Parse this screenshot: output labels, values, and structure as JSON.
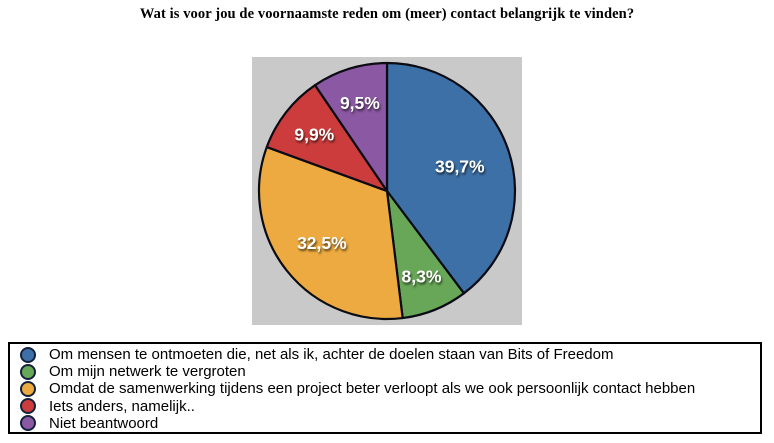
{
  "chart_data": {
    "type": "pie",
    "title": "Wat is voor jou de voornaamste reden om (meer) contact belangrijk te vinden?",
    "legend_position": "bottom",
    "plot_background_color": "#C9C9C9",
    "slice_border_color": "#0b0b14",
    "label_text_color": "#ffffff",
    "start_angle_deg": 0,
    "direction": "clockwise",
    "slices": [
      {
        "label": "Om mensen te ontmoeten die, net als ik, achter de doelen staan van Bits of Freedom",
        "value": 39.7,
        "display": "39,7%",
        "color": "#3D70A6"
      },
      {
        "label": "Om mijn netwerk te vergroten",
        "value": 8.3,
        "display": "8,3%",
        "color": "#69A758"
      },
      {
        "label": "Omdat de samenwerking tijdens een project beter verloopt als we ook persoonlijk contact hebben",
        "value": 32.5,
        "display": "32,5%",
        "color": "#ECAA40"
      },
      {
        "label": "Iets anders, namelijk..",
        "value": 9.9,
        "display": "9,9%",
        "color": "#CC3C3C"
      },
      {
        "label": "Niet beantwoord",
        "value": 9.5,
        "display": "9,5%",
        "color": "#8B58A3"
      }
    ]
  }
}
